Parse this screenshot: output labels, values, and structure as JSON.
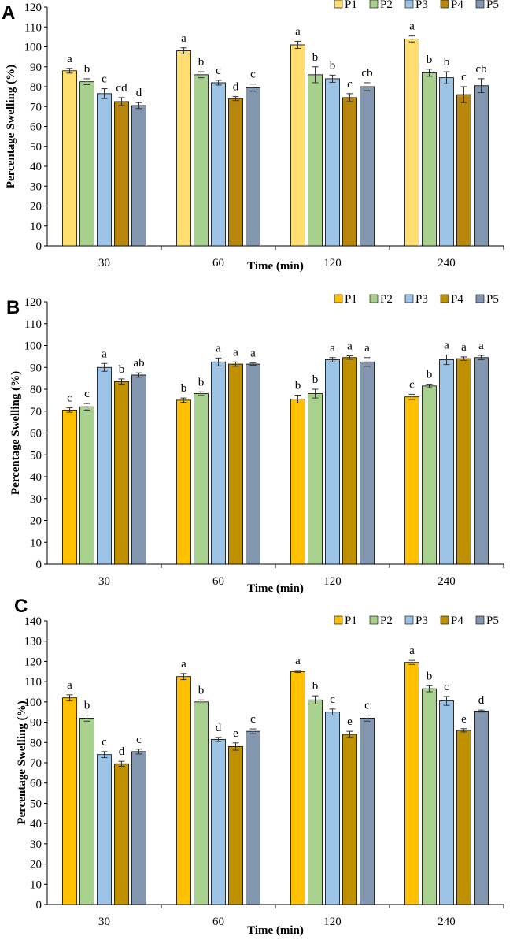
{
  "figure": {
    "series_names": [
      "P1",
      "P2",
      "P3",
      "P4",
      "P5"
    ]
  },
  "chart_data": [
    {
      "type": "bar",
      "panel": "A",
      "title": "",
      "xlabel": "Time (min)",
      "ylabel": "Percentage Swelling (%)",
      "ylim": [
        0,
        120
      ],
      "ytick_step": 10,
      "grid": false,
      "legend": "top-right",
      "categories": [
        "30",
        "60",
        "120",
        "240"
      ],
      "colors": [
        "#FFDD6E",
        "#A8D08D",
        "#9DC3E6",
        "#B8860B",
        "#8497B0"
      ],
      "series": [
        {
          "name": "P1",
          "values": [
            88,
            98,
            101,
            104
          ],
          "errors": [
            1.2,
            1.5,
            1.8,
            1.5
          ],
          "letters": [
            "a",
            "a",
            "a",
            "a"
          ]
        },
        {
          "name": "P2",
          "values": [
            82.5,
            86,
            86,
            87
          ],
          "errors": [
            1.5,
            1.5,
            4,
            1.8
          ],
          "letters": [
            "b",
            "b",
            "b",
            "b"
          ]
        },
        {
          "name": "P3",
          "values": [
            76.5,
            82,
            84,
            84.5
          ],
          "errors": [
            2.5,
            1.2,
            1.8,
            3
          ],
          "letters": [
            "c",
            "c",
            "b",
            "b"
          ]
        },
        {
          "name": "P4",
          "values": [
            72.5,
            74,
            74.5,
            76
          ],
          "errors": [
            2,
            1,
            2,
            4
          ],
          "letters": [
            "cd",
            "d",
            "c",
            "c"
          ]
        },
        {
          "name": "P5",
          "values": [
            70.5,
            79.5,
            80,
            80.5
          ],
          "errors": [
            1.5,
            1.8,
            2,
            3.5
          ],
          "letters": [
            "d",
            "c",
            "cb",
            "cb"
          ]
        }
      ]
    },
    {
      "type": "bar",
      "panel": "B",
      "title": "",
      "xlabel": "Time (min)",
      "ylabel": "Percentage Swelling (%)",
      "ylim": [
        0,
        120
      ],
      "ytick_step": 10,
      "grid": false,
      "legend": "top-right",
      "categories": [
        "30",
        "60",
        "120",
        "240"
      ],
      "colors": [
        "#FFC000",
        "#A9D18E",
        "#9DC3E6",
        "#BF9000",
        "#8497B0"
      ],
      "series": [
        {
          "name": "P1",
          "values": [
            70.5,
            75,
            75.5,
            76.5
          ],
          "errors": [
            1,
            1,
            1.8,
            1.2
          ],
          "letters": [
            "c",
            "b",
            "b",
            "c"
          ]
        },
        {
          "name": "P2",
          "values": [
            72,
            78,
            78,
            81.5
          ],
          "errors": [
            1.5,
            0.8,
            2,
            0.8
          ],
          "letters": [
            "c",
            "b",
            "b",
            "b"
          ]
        },
        {
          "name": "P3",
          "values": [
            90,
            92.5,
            93.5,
            93.5
          ],
          "errors": [
            1.8,
            1.8,
            1,
            2.2
          ],
          "letters": [
            "a",
            "a",
            "a",
            "a"
          ]
        },
        {
          "name": "P4",
          "values": [
            83.5,
            91.5,
            94.5,
            94
          ],
          "errors": [
            1.2,
            1,
            0.8,
            0.8
          ],
          "letters": [
            "b",
            "a",
            "a",
            "a"
          ]
        },
        {
          "name": "P5",
          "values": [
            86.5,
            91.5,
            92.5,
            94.5
          ],
          "errors": [
            1,
            0.5,
            2,
            1
          ],
          "letters": [
            "ab",
            "a",
            "a",
            "a"
          ]
        }
      ]
    },
    {
      "type": "bar",
      "panel": "C",
      "title": "",
      "xlabel": "Time (min)",
      "ylabel": "Percentage Swelling (%)",
      "ylim": [
        0,
        140
      ],
      "ytick_step": 10,
      "grid": false,
      "legend": "top-right",
      "categories": [
        "30",
        "60",
        "120",
        "240"
      ],
      "colors": [
        "#FFC000",
        "#A9D18E",
        "#9DC3E6",
        "#BF9000",
        "#8497B0"
      ],
      "series": [
        {
          "name": "P1",
          "values": [
            102,
            112.5,
            115,
            119.5
          ],
          "errors": [
            1.5,
            1.5,
            0.5,
            1
          ],
          "letters": [
            "a",
            "a",
            "a",
            "a"
          ]
        },
        {
          "name": "P2",
          "values": [
            92,
            100,
            101,
            106.5
          ],
          "errors": [
            1.5,
            1,
            2,
            1.5
          ],
          "letters": [
            "b",
            "b",
            "b",
            "b"
          ]
        },
        {
          "name": "P3",
          "values": [
            74,
            81.5,
            95,
            100.5
          ],
          "errors": [
            1.5,
            1,
            1.5,
            2.2
          ],
          "letters": [
            "c",
            "d",
            "c",
            "c"
          ]
        },
        {
          "name": "P4",
          "values": [
            69.5,
            78,
            84,
            86
          ],
          "errors": [
            1.2,
            1.8,
            1.5,
            0.8
          ],
          "letters": [
            "d",
            "e",
            "e",
            "e"
          ]
        },
        {
          "name": "P5",
          "values": [
            75.5,
            85.5,
            92,
            95.5
          ],
          "errors": [
            1.2,
            1.2,
            1.5,
            0.5
          ],
          "letters": [
            "c",
            "c",
            "c",
            "d"
          ]
        }
      ]
    }
  ]
}
